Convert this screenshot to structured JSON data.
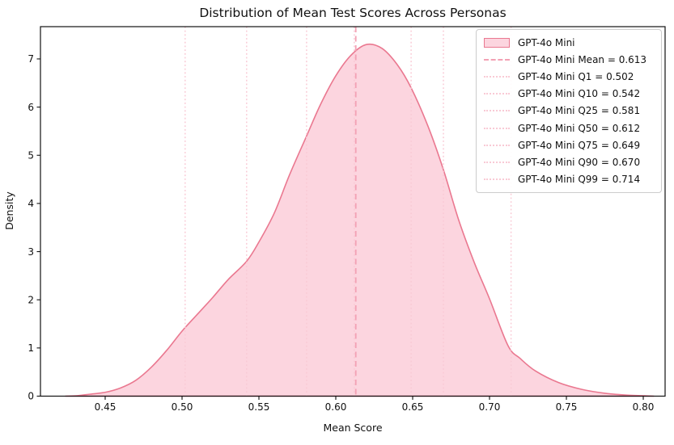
{
  "figure": {
    "title": "Distribution of Mean Test Scores Across Personas",
    "xlabel": "Mean Score",
    "ylabel": "Density"
  },
  "colors": {
    "curve_line": "#ea7890",
    "curve_fill": "#fcd5df",
    "mean_line": "#f3a1b4",
    "quantile_line": "#f9cad5",
    "spine": "#111111",
    "legend_border": "#cccccc"
  },
  "chart_data": {
    "type": "area",
    "title": "Distribution of Mean Test Scores Across Personas",
    "xlabel": "Mean Score",
    "ylabel": "Density",
    "series_name": "GPT-4o Mini",
    "xlim": [
      0.4079,
      0.8142
    ],
    "ylim": [
      0,
      7.67
    ],
    "xtick_values": [
      0.45,
      0.5,
      0.55,
      0.6,
      0.65,
      0.7,
      0.75,
      0.8
    ],
    "xtick_labels": [
      "0.45",
      "0.50",
      "0.55",
      "0.60",
      "0.65",
      "0.70",
      "0.75",
      "0.80"
    ],
    "ytick_values": [
      0,
      1,
      2,
      3,
      4,
      5,
      6,
      7
    ],
    "ytick_labels": [
      "0",
      "1",
      "2",
      "3",
      "4",
      "5",
      "6",
      "7"
    ],
    "grid": false,
    "legend_position": "upper right",
    "mean": 0.613,
    "quantiles": {
      "Q1": 0.502,
      "Q10": 0.542,
      "Q25": 0.581,
      "Q50": 0.612,
      "Q75": 0.649,
      "Q90": 0.67,
      "Q99": 0.714
    },
    "curve_points": {
      "x": [
        0.424,
        0.432,
        0.44,
        0.45,
        0.46,
        0.47,
        0.48,
        0.49,
        0.5,
        0.51,
        0.52,
        0.53,
        0.542,
        0.55,
        0.56,
        0.57,
        0.581,
        0.59,
        0.6,
        0.61,
        0.62,
        0.63,
        0.64,
        0.649,
        0.66,
        0.67,
        0.68,
        0.69,
        0.7,
        0.712,
        0.72,
        0.73,
        0.745,
        0.76,
        0.775,
        0.79,
        0.8,
        0.807
      ],
      "density": [
        0.0,
        0.01,
        0.04,
        0.08,
        0.17,
        0.33,
        0.6,
        0.95,
        1.35,
        1.7,
        2.05,
        2.42,
        2.8,
        3.2,
        3.8,
        4.6,
        5.4,
        6.05,
        6.65,
        7.08,
        7.3,
        7.22,
        6.88,
        6.4,
        5.6,
        4.7,
        3.65,
        2.78,
        2.02,
        1.05,
        0.78,
        0.52,
        0.28,
        0.14,
        0.06,
        0.02,
        0.01,
        0.0
      ]
    }
  },
  "legend": {
    "items": [
      {
        "label": "GPT-4o Mini",
        "swatch": "patch"
      },
      {
        "label": "GPT-4o Mini Mean = 0.613",
        "swatch": "dashed"
      },
      {
        "label": "GPT-4o Mini Q1 = 0.502",
        "swatch": "dotted"
      },
      {
        "label": "GPT-4o Mini Q10 = 0.542",
        "swatch": "dotted"
      },
      {
        "label": "GPT-4o Mini Q25 = 0.581",
        "swatch": "dotted"
      },
      {
        "label": "GPT-4o Mini Q50 = 0.612",
        "swatch": "dotted"
      },
      {
        "label": "GPT-4o Mini Q75 = 0.649",
        "swatch": "dotted"
      },
      {
        "label": "GPT-4o Mini Q90 = 0.670",
        "swatch": "dotted"
      },
      {
        "label": "GPT-4o Mini Q99 = 0.714",
        "swatch": "dotted"
      }
    ]
  }
}
